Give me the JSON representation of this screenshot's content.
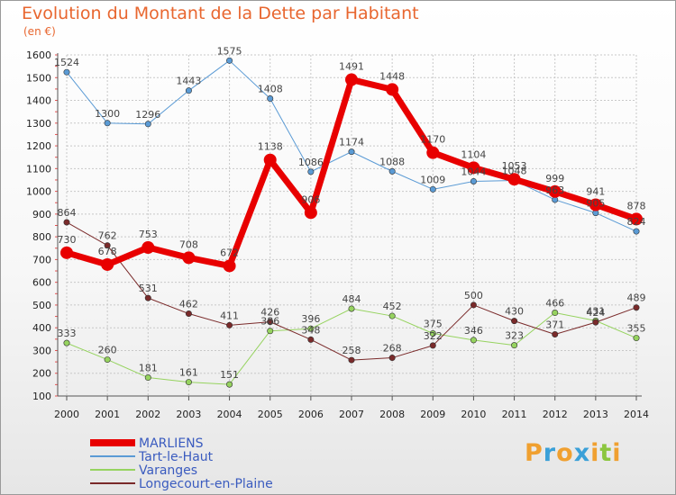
{
  "chart_data": {
    "type": "line",
    "title": "Evolution du Montant de la Dette par Habitant",
    "ylabel": "(en €)",
    "xlabel": "",
    "x": [
      "2000",
      "2001",
      "2002",
      "2003",
      "2004",
      "2005",
      "2006",
      "2007",
      "2008",
      "2009",
      "2010",
      "2011",
      "2012",
      "2013",
      "2014"
    ],
    "ylim": [
      100,
      1600
    ],
    "yticks": [
      100,
      200,
      300,
      400,
      500,
      600,
      700,
      800,
      900,
      1000,
      1100,
      1200,
      1300,
      1400,
      1500,
      1600
    ],
    "grid": true,
    "legend": "bottom-left",
    "series": [
      {
        "name": "Tart-le-Haut",
        "color": "#5b9bd5",
        "width": 1,
        "values": [
          1524,
          1300,
          1296,
          1443,
          1575,
          1408,
          1086,
          1174,
          1088,
          1009,
          1044,
          1048,
          963,
          905,
          824
        ]
      },
      {
        "name": "Varanges",
        "color": "#96d35f",
        "width": 1,
        "values": [
          333,
          260,
          181,
          161,
          151,
          386,
          396,
          484,
          452,
          375,
          346,
          323,
          466,
          431,
          355
        ]
      },
      {
        "name": "Longecourt-en-Plaine",
        "color": "#7a2a2a",
        "width": 1,
        "values": [
          864,
          762,
          531,
          462,
          411,
          426,
          348,
          258,
          268,
          322,
          500,
          430,
          371,
          424,
          489
        ]
      },
      {
        "name": "MARLIENS",
        "color": "#e80000",
        "width": 7,
        "values": [
          730,
          678,
          753,
          708,
          672,
          1138,
          906,
          1491,
          1448,
          1170,
          1104,
          1053,
          999,
          941,
          878
        ]
      }
    ],
    "legend_order": [
      "MARLIENS",
      "Tart-le-Haut",
      "Varanges",
      "Longecourt-en-Plaine"
    ]
  },
  "logo": {
    "letters": [
      "P",
      "r",
      "o",
      "x",
      "i",
      "t",
      "i"
    ],
    "colors": [
      "#f0a030",
      "#3aa0d8",
      "#f0a030",
      "#3aa0d8",
      "#f0a030",
      "#8cc63f",
      "#f0a030"
    ]
  }
}
